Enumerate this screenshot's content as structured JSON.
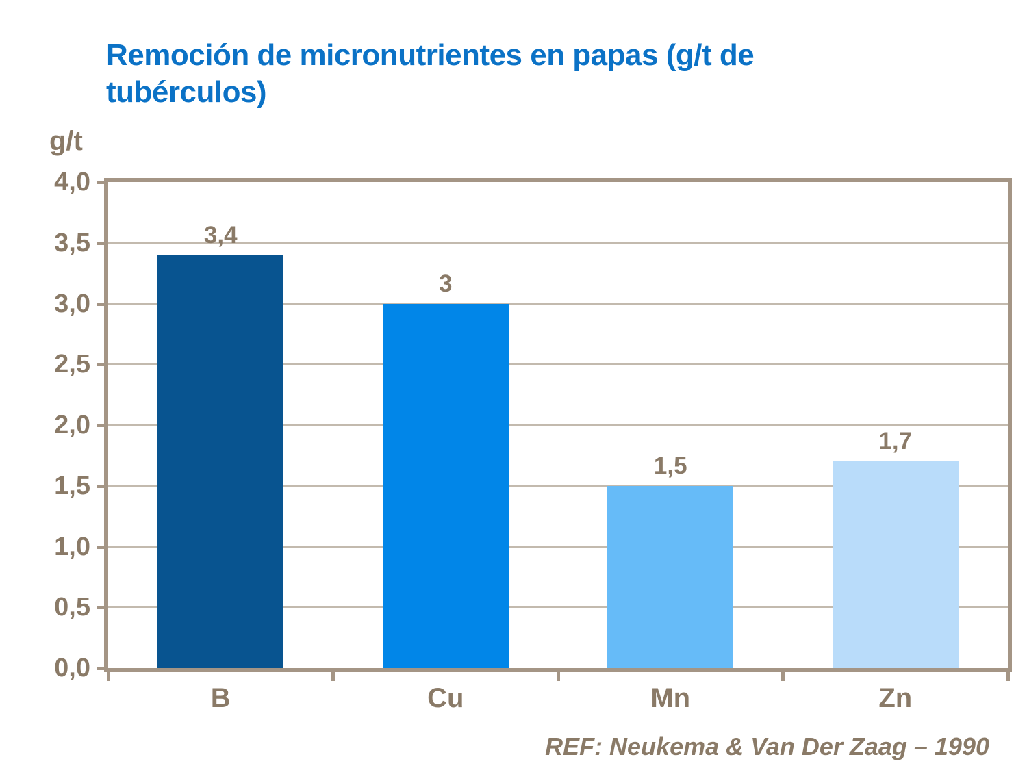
{
  "page": {
    "title": "Remoción de micronutrientes en papas (g/t de tubérculos)",
    "title_lines": [
      "Remoción de micronutrientes en papas (g/t de",
      "tubérculos)"
    ],
    "reference": "REF: Neukema & Van Der Zaag – 1990"
  },
  "chart_data": {
    "type": "bar",
    "title": "Remoción de micronutrientes en papas (g/t de tubérculos)",
    "categories": [
      "B",
      "Cu",
      "Mn",
      "Zn"
    ],
    "values": [
      3.4,
      3,
      1.5,
      1.7
    ],
    "value_labels": [
      "3,4",
      "3",
      "1,5",
      "1,7"
    ],
    "bar_colors": [
      "#085490",
      "#0186e8",
      "#66bbf8",
      "#b9dcfa"
    ],
    "xlabel": "",
    "ylabel": "g/t",
    "ylim": [
      0,
      4
    ],
    "y_tick_step": 0.5,
    "y_tick_labels": [
      "0,0",
      "0,5",
      "1,0",
      "1,5",
      "2,0",
      "2,5",
      "3,0",
      "3,5",
      "4,0"
    ],
    "grid": true,
    "legend": false
  },
  "colors": {
    "title": "#0b72c6",
    "text": "#8a7a67",
    "axis": "#a49585",
    "gridline": "#c3baae",
    "background": "#ffffff"
  }
}
